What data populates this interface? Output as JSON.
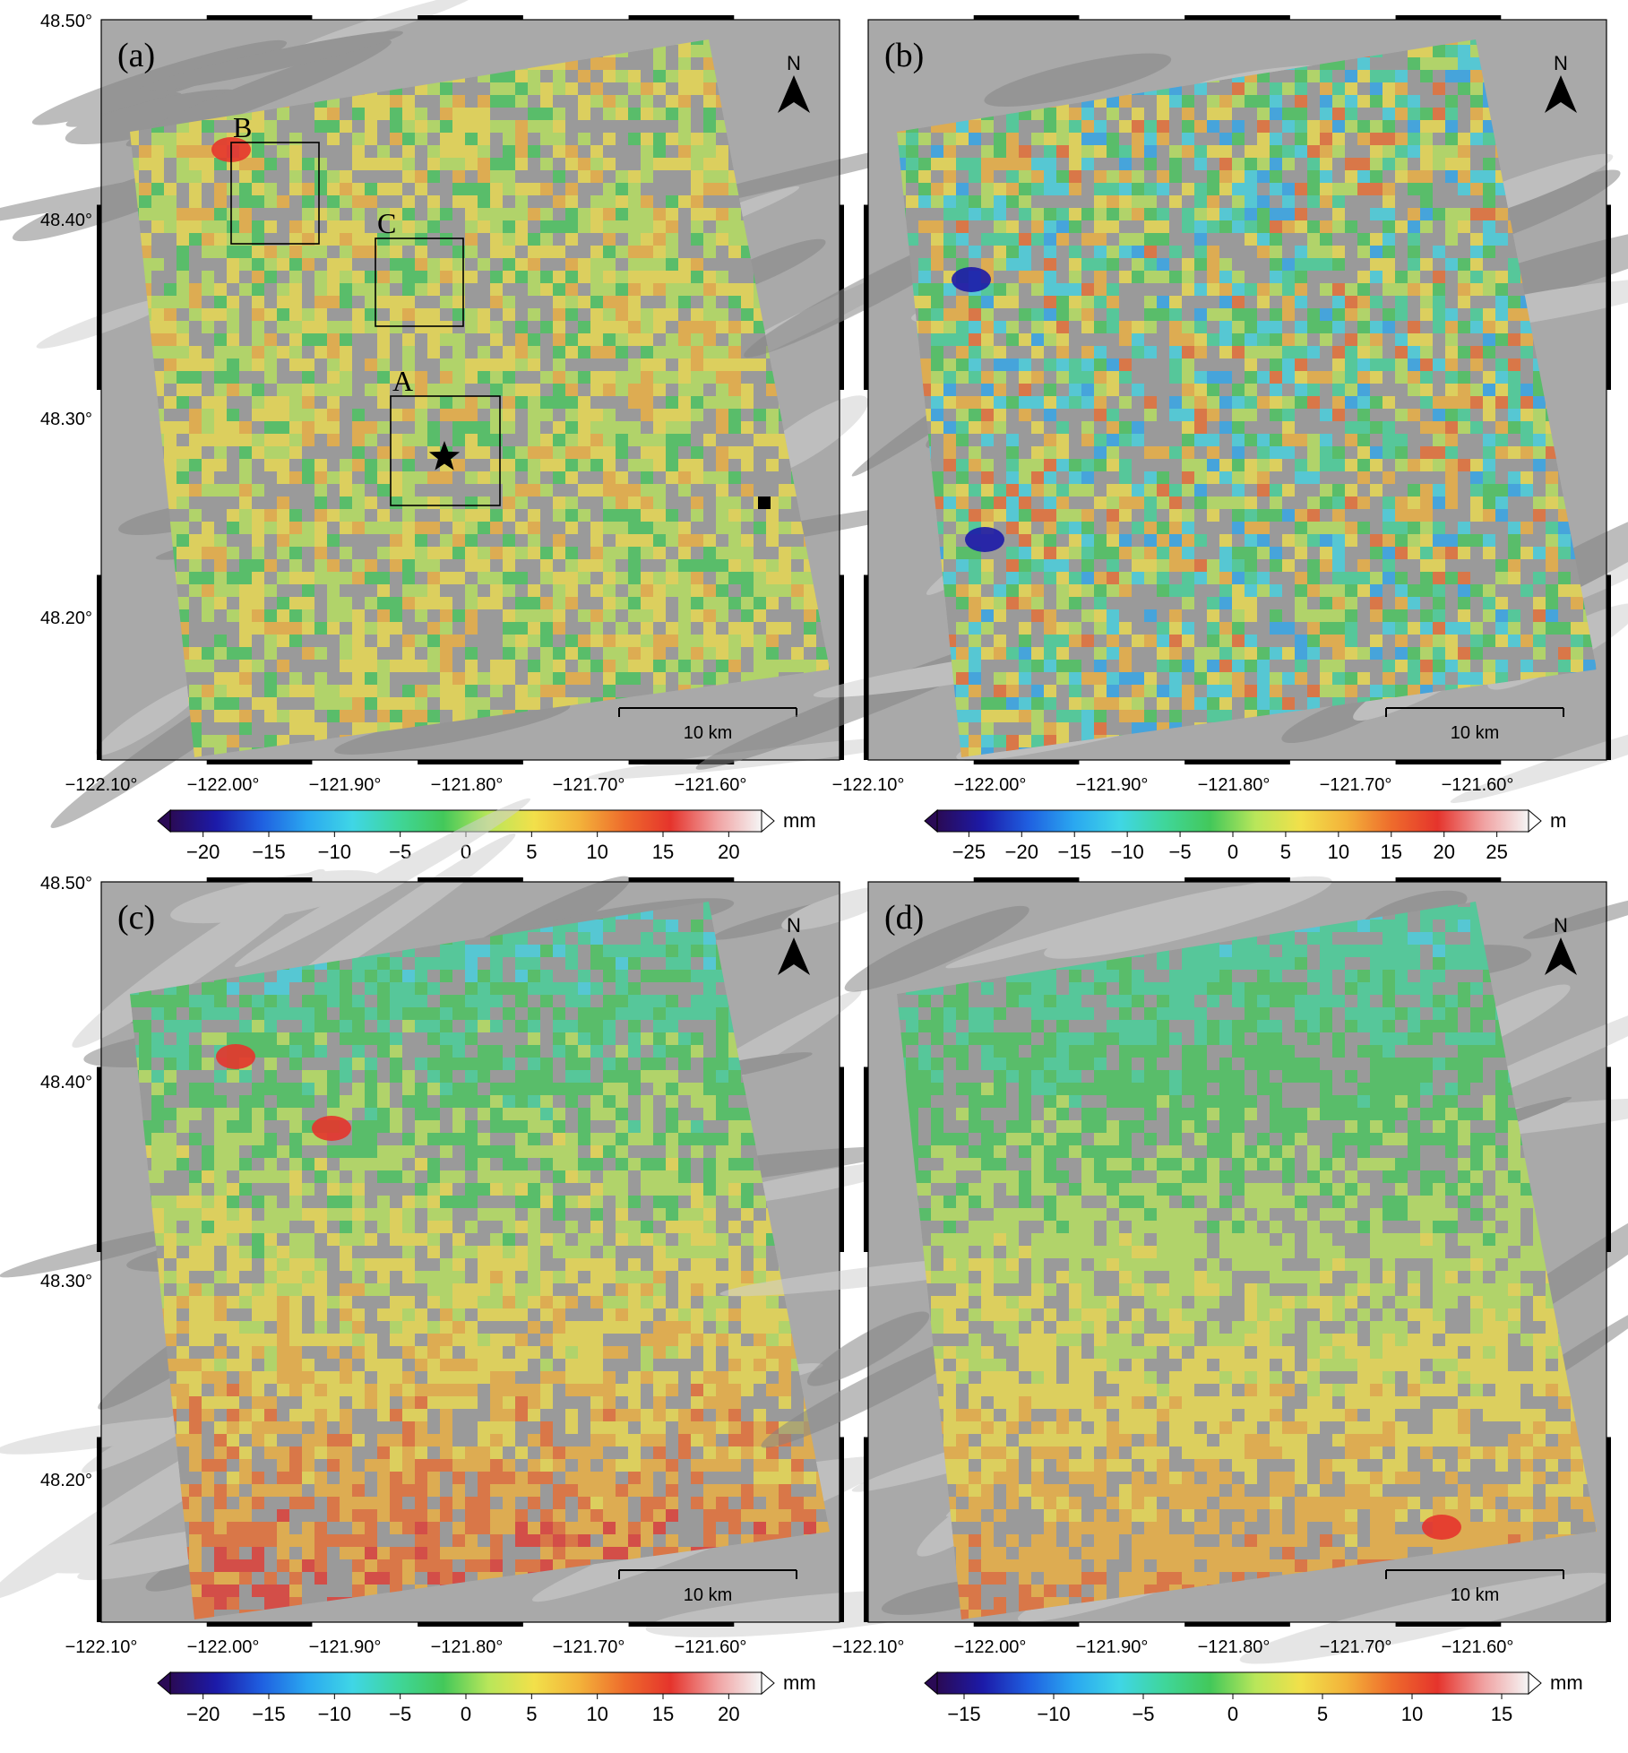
{
  "panels": [
    {
      "id": "a",
      "label": "(a)",
      "north_label": "N",
      "scale_bar_label": "10 km",
      "lat_ticks": [
        "48.50°",
        "48.40°",
        "48.30°",
        "48.20°"
      ],
      "lon_ticks": [
        "−122.10°",
        "−122.00°",
        "−121.90°",
        "−121.80°",
        "−121.70°",
        "−121.60°"
      ],
      "boxes": [
        {
          "label": "B"
        },
        {
          "label": "C"
        },
        {
          "label": "A"
        }
      ],
      "has_star": true,
      "has_square": true,
      "colorbar": {
        "unit": "mm",
        "range": [
          -22.5,
          22.5
        ],
        "tick_values": [
          -20,
          -15,
          -10,
          -5,
          0,
          5,
          10,
          15,
          20
        ],
        "tick_labels": [
          "−20",
          "−15",
          "−10",
          "−5",
          "0",
          "5",
          "10",
          "15",
          "20"
        ]
      }
    },
    {
      "id": "b",
      "label": "(b)",
      "north_label": "N",
      "scale_bar_label": "10 km",
      "lat_ticks": [],
      "lon_ticks": [
        "−122.10°",
        "−122.00°",
        "−121.90°",
        "−121.80°",
        "−121.70°",
        "−121.60°"
      ],
      "boxes": [],
      "has_star": false,
      "has_square": false,
      "colorbar": {
        "unit": "m",
        "range": [
          -28,
          28
        ],
        "tick_values": [
          -25,
          -20,
          -15,
          -10,
          -5,
          0,
          5,
          10,
          15,
          20,
          25
        ],
        "tick_labels": [
          "−25",
          "−20",
          "−15",
          "−10",
          "−5",
          "0",
          "5",
          "10",
          "15",
          "20",
          "25"
        ]
      }
    },
    {
      "id": "c",
      "label": "(c)",
      "north_label": "N",
      "scale_bar_label": "10 km",
      "lat_ticks": [
        "48.50°",
        "48.40°",
        "48.30°",
        "48.20°"
      ],
      "lon_ticks": [
        "−122.10°",
        "−122.00°",
        "−121.90°",
        "−121.80°",
        "−121.70°",
        "−121.60°"
      ],
      "boxes": [],
      "has_star": false,
      "has_square": false,
      "colorbar": {
        "unit": "mm",
        "range": [
          -22.5,
          22.5
        ],
        "tick_values": [
          -20,
          -15,
          -10,
          -5,
          0,
          5,
          10,
          15,
          20
        ],
        "tick_labels": [
          "−20",
          "−15",
          "−10",
          "−5",
          "0",
          "5",
          "10",
          "15",
          "20"
        ]
      }
    },
    {
      "id": "d",
      "label": "(d)",
      "north_label": "N",
      "scale_bar_label": "10 km",
      "lat_ticks": [],
      "lon_ticks": [
        "−122.10°",
        "−122.00°",
        "−121.90°",
        "−121.80°",
        "−121.70°",
        "−121.60°"
      ],
      "boxes": [],
      "has_star": false,
      "has_square": false,
      "colorbar": {
        "unit": "mm",
        "range": [
          -16.5,
          16.5
        ],
        "tick_values": [
          -15,
          -10,
          -5,
          0,
          5,
          10,
          15
        ],
        "tick_labels": [
          "−15",
          "−10",
          "−5",
          "0",
          "5",
          "10",
          "15"
        ]
      }
    }
  ],
  "palette": [
    "#2a0a55",
    "#1c1aa8",
    "#1f5fe0",
    "#2aa7f0",
    "#3fd6e6",
    "#3fd69a",
    "#43c85a",
    "#b8e65a",
    "#f2e04a",
    "#f3b23a",
    "#ee6b2c",
    "#e5342c",
    "#f0a0a0",
    "#f5f5f5"
  ],
  "colors": {
    "terrain": "#a9a9a9",
    "ridge_light": "#cfcfcf",
    "ridge_dark": "#858585"
  }
}
